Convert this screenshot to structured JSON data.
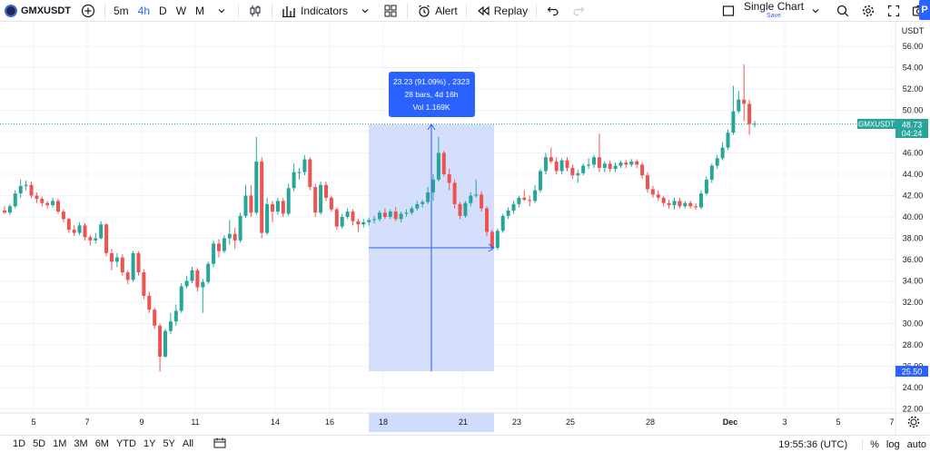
{
  "toolbar": {
    "symbol": "GMXUSDT",
    "intervals": [
      "5m",
      "4h",
      "D",
      "W",
      "M"
    ],
    "active_interval": "4h",
    "indicators_label": "Indicators",
    "alert_label": "Alert",
    "replay_label": "Replay",
    "layout_title": "Single Chart",
    "layout_sub": "Save",
    "publish_label": "P"
  },
  "price_axis": {
    "currency": "USDT",
    "ticks": [
      "56.00",
      "54.00",
      "52.00",
      "50.00",
      "48.00",
      "46.00",
      "44.00",
      "42.00",
      "40.00",
      "38.00",
      "36.00",
      "34.00",
      "32.00",
      "30.00",
      "28.00",
      "26.00",
      "24.00",
      "22.00"
    ],
    "last_price_symbol": "GMXUSDT",
    "last_price": "48.73",
    "countdown": "04:24",
    "range_low_label": "25.50"
  },
  "time_axis": {
    "ticks": [
      "5",
      "7",
      "9",
      "11",
      "14",
      "16",
      "18",
      "21",
      "23",
      "25",
      "28",
      "Dec",
      "3",
      "5",
      "7"
    ],
    "highlight_ticks": [
      "18",
      "21"
    ]
  },
  "measure": {
    "line1": "23.23 (91.09%) , 2323",
    "line2": "28 bars, 4d 16h",
    "line3": "Vol 1.169K"
  },
  "bottom": {
    "ranges": [
      "1D",
      "5D",
      "1M",
      "3M",
      "6M",
      "YTD",
      "1Y",
      "5Y",
      "All"
    ],
    "clock": "19:55:36 (UTC)",
    "pct": "%",
    "log": "log",
    "auto": "auto"
  },
  "colors": {
    "up": "#26a69a",
    "down": "#ef5350",
    "accent": "#2962ff",
    "measure_fill": "#cfdcfb"
  },
  "chart_data": {
    "type": "candlestick",
    "symbol": "GMXUSDT",
    "interval": "4h",
    "ylim": [
      22,
      57
    ],
    "candles": [
      {
        "o": 40.6,
        "h": 41.0,
        "l": 40.3,
        "c": 40.4
      },
      {
        "o": 40.4,
        "h": 41.2,
        "l": 40.2,
        "c": 41.0
      },
      {
        "o": 41.0,
        "h": 42.5,
        "l": 40.8,
        "c": 42.2
      },
      {
        "o": 42.2,
        "h": 43.5,
        "l": 41.8,
        "c": 42.9
      },
      {
        "o": 42.9,
        "h": 43.4,
        "l": 42.5,
        "c": 43.0
      },
      {
        "o": 43.0,
        "h": 43.3,
        "l": 41.8,
        "c": 42.0
      },
      {
        "o": 42.0,
        "h": 42.3,
        "l": 41.3,
        "c": 41.7
      },
      {
        "o": 41.7,
        "h": 41.9,
        "l": 41.0,
        "c": 41.3
      },
      {
        "o": 41.3,
        "h": 41.5,
        "l": 40.8,
        "c": 41.1
      },
      {
        "o": 41.1,
        "h": 41.8,
        "l": 40.9,
        "c": 41.5
      },
      {
        "o": 41.5,
        "h": 41.7,
        "l": 40.3,
        "c": 40.5
      },
      {
        "o": 40.5,
        "h": 40.7,
        "l": 39.5,
        "c": 39.8
      },
      {
        "o": 39.8,
        "h": 39.9,
        "l": 38.5,
        "c": 38.8
      },
      {
        "o": 38.8,
        "h": 39.2,
        "l": 38.2,
        "c": 38.5
      },
      {
        "o": 38.5,
        "h": 39.5,
        "l": 38.3,
        "c": 39.2
      },
      {
        "o": 39.2,
        "h": 39.4,
        "l": 37.8,
        "c": 38.1
      },
      {
        "o": 38.1,
        "h": 38.3,
        "l": 37.3,
        "c": 37.8
      },
      {
        "o": 37.8,
        "h": 38.5,
        "l": 37.5,
        "c": 38.0
      },
      {
        "o": 38.0,
        "h": 39.6,
        "l": 37.9,
        "c": 39.3
      },
      {
        "o": 39.3,
        "h": 39.4,
        "l": 36.3,
        "c": 36.6
      },
      {
        "o": 36.6,
        "h": 37.0,
        "l": 35.0,
        "c": 35.8
      },
      {
        "o": 35.8,
        "h": 36.6,
        "l": 35.3,
        "c": 36.2
      },
      {
        "o": 36.2,
        "h": 36.5,
        "l": 34.5,
        "c": 34.8
      },
      {
        "o": 34.8,
        "h": 35.0,
        "l": 33.7,
        "c": 34.1
      },
      {
        "o": 34.1,
        "h": 36.8,
        "l": 33.9,
        "c": 36.6
      },
      {
        "o": 36.6,
        "h": 36.8,
        "l": 34.5,
        "c": 34.8
      },
      {
        "o": 34.8,
        "h": 35.1,
        "l": 32.3,
        "c": 32.6
      },
      {
        "o": 32.6,
        "h": 33.0,
        "l": 31.0,
        "c": 31.3
      },
      {
        "o": 31.3,
        "h": 31.5,
        "l": 29.5,
        "c": 29.8
      },
      {
        "o": 29.8,
        "h": 30.0,
        "l": 25.5,
        "c": 26.9
      },
      {
        "o": 26.9,
        "h": 29.5,
        "l": 26.8,
        "c": 29.3
      },
      {
        "o": 29.3,
        "h": 31.0,
        "l": 29.0,
        "c": 30.2
      },
      {
        "o": 30.2,
        "h": 31.8,
        "l": 29.8,
        "c": 31.2
      },
      {
        "o": 31.2,
        "h": 33.8,
        "l": 31.0,
        "c": 33.5
      },
      {
        "o": 33.5,
        "h": 34.5,
        "l": 33.3,
        "c": 34.0
      },
      {
        "o": 34.0,
        "h": 35.3,
        "l": 33.8,
        "c": 35.0
      },
      {
        "o": 35.0,
        "h": 35.2,
        "l": 33.0,
        "c": 33.4
      },
      {
        "o": 33.4,
        "h": 34.2,
        "l": 31.0,
        "c": 33.9
      },
      {
        "o": 33.9,
        "h": 35.8,
        "l": 33.7,
        "c": 35.6
      },
      {
        "o": 35.6,
        "h": 37.8,
        "l": 35.3,
        "c": 37.5
      },
      {
        "o": 37.5,
        "h": 37.9,
        "l": 36.2,
        "c": 36.8
      },
      {
        "o": 36.8,
        "h": 38.3,
        "l": 36.6,
        "c": 38.0
      },
      {
        "o": 38.0,
        "h": 39.7,
        "l": 37.4,
        "c": 38.4
      },
      {
        "o": 38.4,
        "h": 39.0,
        "l": 37.0,
        "c": 37.8
      },
      {
        "o": 37.8,
        "h": 40.4,
        "l": 37.6,
        "c": 40.1
      },
      {
        "o": 40.1,
        "h": 43.0,
        "l": 39.9,
        "c": 42.0
      },
      {
        "o": 42.0,
        "h": 43.0,
        "l": 40.0,
        "c": 40.4
      },
      {
        "o": 40.4,
        "h": 47.5,
        "l": 40.2,
        "c": 45.2
      },
      {
        "o": 45.2,
        "h": 45.6,
        "l": 38.0,
        "c": 38.5
      },
      {
        "o": 38.5,
        "h": 41.8,
        "l": 38.3,
        "c": 41.2
      },
      {
        "o": 41.2,
        "h": 41.5,
        "l": 39.5,
        "c": 40.5
      },
      {
        "o": 40.5,
        "h": 41.8,
        "l": 40.2,
        "c": 41.5
      },
      {
        "o": 41.5,
        "h": 41.8,
        "l": 40.0,
        "c": 40.3
      },
      {
        "o": 40.3,
        "h": 43.1,
        "l": 40.1,
        "c": 42.7
      },
      {
        "o": 42.7,
        "h": 45.0,
        "l": 42.4,
        "c": 44.2
      },
      {
        "o": 44.2,
        "h": 44.6,
        "l": 43.5,
        "c": 44.2
      },
      {
        "o": 44.2,
        "h": 45.8,
        "l": 43.9,
        "c": 45.4
      },
      {
        "o": 45.4,
        "h": 45.6,
        "l": 42.5,
        "c": 42.8
      },
      {
        "o": 42.8,
        "h": 43.1,
        "l": 40.0,
        "c": 40.4
      },
      {
        "o": 40.4,
        "h": 43.3,
        "l": 40.2,
        "c": 43.0
      },
      {
        "o": 43.0,
        "h": 43.3,
        "l": 41.5,
        "c": 41.8
      },
      {
        "o": 41.8,
        "h": 42.0,
        "l": 40.5,
        "c": 40.7
      },
      {
        "o": 40.7,
        "h": 40.9,
        "l": 38.8,
        "c": 39.1
      },
      {
        "o": 39.1,
        "h": 40.3,
        "l": 38.9,
        "c": 40.0
      },
      {
        "o": 40.0,
        "h": 40.8,
        "l": 39.8,
        "c": 40.5
      },
      {
        "o": 40.5,
        "h": 40.7,
        "l": 39.2,
        "c": 39.6
      },
      {
        "o": 39.6,
        "h": 39.8,
        "l": 38.6,
        "c": 39.3
      },
      {
        "o": 39.3,
        "h": 39.8,
        "l": 39.0,
        "c": 39.5
      },
      {
        "o": 39.5,
        "h": 39.9,
        "l": 39.2,
        "c": 39.7
      },
      {
        "o": 39.7,
        "h": 40.1,
        "l": 39.4,
        "c": 39.8
      },
      {
        "o": 39.8,
        "h": 40.6,
        "l": 39.6,
        "c": 40.4
      },
      {
        "o": 40.4,
        "h": 40.8,
        "l": 39.8,
        "c": 40.0
      },
      {
        "o": 40.0,
        "h": 40.7,
        "l": 39.8,
        "c": 40.5
      },
      {
        "o": 40.5,
        "h": 40.9,
        "l": 39.6,
        "c": 39.8
      },
      {
        "o": 39.8,
        "h": 40.5,
        "l": 39.5,
        "c": 40.3
      },
      {
        "o": 40.3,
        "h": 40.7,
        "l": 40.0,
        "c": 40.4
      },
      {
        "o": 40.4,
        "h": 41.0,
        "l": 40.2,
        "c": 40.8
      },
      {
        "o": 40.8,
        "h": 41.5,
        "l": 40.6,
        "c": 41.2
      },
      {
        "o": 41.2,
        "h": 41.6,
        "l": 40.9,
        "c": 41.4
      },
      {
        "o": 41.4,
        "h": 42.8,
        "l": 41.2,
        "c": 42.3
      },
      {
        "o": 42.3,
        "h": 44.0,
        "l": 41.5,
        "c": 43.5
      },
      {
        "o": 43.5,
        "h": 47.5,
        "l": 43.3,
        "c": 46.0
      },
      {
        "o": 46.0,
        "h": 46.2,
        "l": 43.8,
        "c": 44.0
      },
      {
        "o": 44.0,
        "h": 44.5,
        "l": 42.5,
        "c": 43.2
      },
      {
        "o": 43.2,
        "h": 43.5,
        "l": 40.8,
        "c": 41.2
      },
      {
        "o": 41.2,
        "h": 41.4,
        "l": 39.8,
        "c": 40.1
      },
      {
        "o": 40.1,
        "h": 41.5,
        "l": 39.9,
        "c": 41.3
      },
      {
        "o": 41.3,
        "h": 42.3,
        "l": 41.0,
        "c": 42.0
      },
      {
        "o": 42.0,
        "h": 43.5,
        "l": 41.8,
        "c": 42.1
      },
      {
        "o": 42.1,
        "h": 42.4,
        "l": 40.5,
        "c": 40.8
      },
      {
        "o": 40.8,
        "h": 41.0,
        "l": 38.2,
        "c": 38.6
      },
      {
        "o": 38.6,
        "h": 38.8,
        "l": 36.9,
        "c": 37.1
      },
      {
        "o": 37.1,
        "h": 38.9,
        "l": 36.9,
        "c": 38.7
      },
      {
        "o": 38.7,
        "h": 40.3,
        "l": 38.5,
        "c": 40.1
      },
      {
        "o": 40.1,
        "h": 40.9,
        "l": 39.8,
        "c": 40.6
      },
      {
        "o": 40.6,
        "h": 41.5,
        "l": 40.3,
        "c": 41.2
      },
      {
        "o": 41.2,
        "h": 42.0,
        "l": 40.9,
        "c": 41.8
      },
      {
        "o": 41.8,
        "h": 42.5,
        "l": 41.5,
        "c": 41.6
      },
      {
        "o": 41.6,
        "h": 42.0,
        "l": 41.0,
        "c": 41.5
      },
      {
        "o": 41.5,
        "h": 43.0,
        "l": 41.3,
        "c": 42.5
      },
      {
        "o": 42.5,
        "h": 44.5,
        "l": 42.3,
        "c": 44.3
      },
      {
        "o": 44.3,
        "h": 46.0,
        "l": 44.0,
        "c": 45.6
      },
      {
        "o": 45.6,
        "h": 46.5,
        "l": 45.0,
        "c": 45.2
      },
      {
        "o": 45.2,
        "h": 45.6,
        "l": 44.0,
        "c": 44.3
      },
      {
        "o": 44.3,
        "h": 45.5,
        "l": 44.0,
        "c": 45.3
      },
      {
        "o": 45.3,
        "h": 45.6,
        "l": 44.3,
        "c": 44.6
      },
      {
        "o": 44.6,
        "h": 44.9,
        "l": 43.6,
        "c": 43.9
      },
      {
        "o": 43.9,
        "h": 44.4,
        "l": 43.2,
        "c": 44.1
      },
      {
        "o": 44.1,
        "h": 45.0,
        "l": 43.9,
        "c": 44.8
      },
      {
        "o": 44.8,
        "h": 45.5,
        "l": 44.5,
        "c": 44.9
      },
      {
        "o": 44.9,
        "h": 45.8,
        "l": 44.6,
        "c": 45.6
      },
      {
        "o": 45.6,
        "h": 47.8,
        "l": 44.2,
        "c": 44.6
      },
      {
        "o": 44.6,
        "h": 45.2,
        "l": 44.2,
        "c": 45.0
      },
      {
        "o": 45.0,
        "h": 45.3,
        "l": 44.2,
        "c": 44.5
      },
      {
        "o": 44.5,
        "h": 45.1,
        "l": 44.2,
        "c": 44.8
      },
      {
        "o": 44.8,
        "h": 45.3,
        "l": 44.6,
        "c": 45.1
      },
      {
        "o": 45.1,
        "h": 45.3,
        "l": 44.6,
        "c": 44.9
      },
      {
        "o": 44.9,
        "h": 45.4,
        "l": 44.7,
        "c": 45.2
      },
      {
        "o": 45.2,
        "h": 45.4,
        "l": 44.6,
        "c": 44.9
      },
      {
        "o": 44.9,
        "h": 45.1,
        "l": 43.6,
        "c": 43.9
      },
      {
        "o": 43.9,
        "h": 44.2,
        "l": 42.3,
        "c": 42.6
      },
      {
        "o": 42.6,
        "h": 42.9,
        "l": 41.8,
        "c": 42.1
      },
      {
        "o": 42.1,
        "h": 42.5,
        "l": 41.5,
        "c": 41.8
      },
      {
        "o": 41.8,
        "h": 42.0,
        "l": 41.0,
        "c": 41.3
      },
      {
        "o": 41.3,
        "h": 41.6,
        "l": 40.8,
        "c": 41.1
      },
      {
        "o": 41.1,
        "h": 41.8,
        "l": 40.7,
        "c": 41.5
      },
      {
        "o": 41.5,
        "h": 41.8,
        "l": 40.8,
        "c": 41.0
      },
      {
        "o": 41.0,
        "h": 41.5,
        "l": 40.8,
        "c": 41.3
      },
      {
        "o": 41.3,
        "h": 41.5,
        "l": 40.8,
        "c": 41.0
      },
      {
        "o": 41.0,
        "h": 41.3,
        "l": 40.7,
        "c": 40.9
      },
      {
        "o": 40.9,
        "h": 42.5,
        "l": 40.7,
        "c": 42.2
      },
      {
        "o": 42.2,
        "h": 43.8,
        "l": 42.0,
        "c": 43.5
      },
      {
        "o": 43.5,
        "h": 45.0,
        "l": 43.2,
        "c": 44.8
      },
      {
        "o": 44.8,
        "h": 45.8,
        "l": 44.5,
        "c": 45.5
      },
      {
        "o": 45.5,
        "h": 47.0,
        "l": 45.3,
        "c": 46.5
      },
      {
        "o": 46.5,
        "h": 48.2,
        "l": 46.3,
        "c": 47.9
      },
      {
        "o": 47.9,
        "h": 52.3,
        "l": 47.7,
        "c": 49.9
      },
      {
        "o": 49.9,
        "h": 51.8,
        "l": 49.7,
        "c": 51.0
      },
      {
        "o": 51.0,
        "h": 54.3,
        "l": 49.0,
        "c": 50.6
      },
      {
        "o": 50.6,
        "h": 51.0,
        "l": 47.7,
        "c": 48.7
      },
      {
        "o": 48.7,
        "h": 49.0,
        "l": 48.4,
        "c": 48.73
      }
    ]
  }
}
